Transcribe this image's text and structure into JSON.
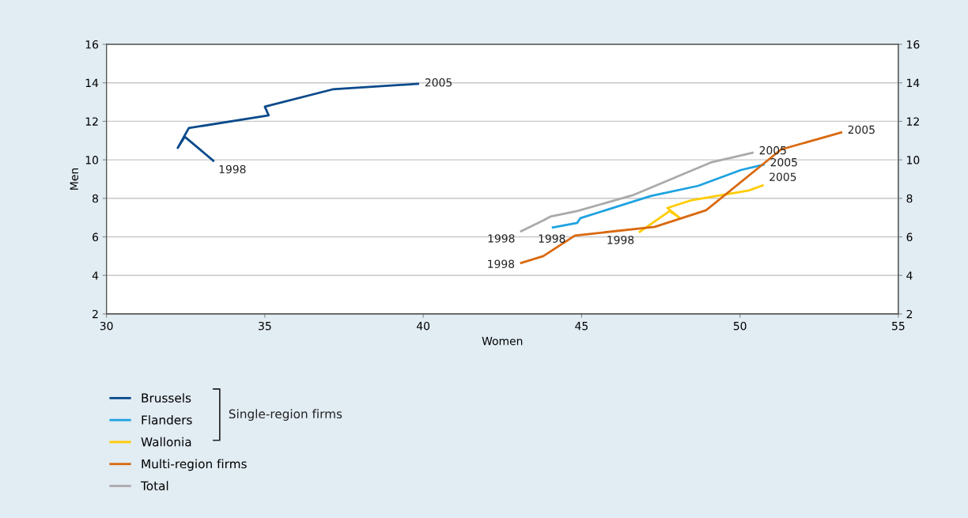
{
  "chart_data": {
    "type": "line",
    "xlabel": "Women",
    "ylabel": "Men",
    "xlim": [
      30,
      55
    ],
    "xticks": [
      30,
      35,
      40,
      45,
      50,
      55
    ],
    "ylim": [
      2,
      16
    ],
    "yticks": [
      2,
      4,
      6,
      8,
      10,
      12,
      14,
      16
    ],
    "y2lim": [
      2,
      16
    ],
    "y2ticks": [
      2,
      4,
      6,
      8,
      10,
      12,
      14,
      16
    ],
    "grid": "y",
    "legend": "bottom left",
    "marker": "none",
    "line_style": "solid",
    "series": [
      {
        "name": "Brussels",
        "color": "#0b4a8b",
        "x": [
          33.4,
          32.47,
          32.25,
          32.6,
          35.12,
          35.0,
          37.14,
          39.87
        ],
        "values": [
          9.92,
          11.2,
          10.62,
          11.65,
          12.31,
          12.76,
          13.66,
          13.95
        ]
      },
      {
        "name": "Flanders",
        "color": "#1ea2e0",
        "x": [
          44.06,
          44.86,
          44.96,
          47.18,
          48.68,
          50.03,
          50.78
        ],
        "values": [
          6.48,
          6.72,
          6.97,
          8.12,
          8.65,
          9.47,
          9.76
        ]
      },
      {
        "name": "Wallonia",
        "color": "#ffcc00",
        "x": [
          46.81,
          47.78,
          48.11,
          47.71,
          48.48,
          50.28,
          50.75
        ],
        "values": [
          6.23,
          7.34,
          6.97,
          7.5,
          7.91,
          8.41,
          8.69
        ]
      },
      {
        "name": "Multi-region firms",
        "color": "#d9690f",
        "x": [
          43.06,
          43.79,
          44.79,
          47.31,
          48.93,
          51.3,
          53.23
        ],
        "values": [
          4.63,
          5.0,
          6.07,
          6.52,
          7.38,
          10.54,
          11.44
        ]
      },
      {
        "name": "Total",
        "color": "#aaaaaa",
        "x": [
          43.06,
          43.79,
          44.01,
          44.86,
          46.61,
          49.11,
          50.43
        ],
        "values": [
          6.27,
          6.85,
          7.05,
          7.34,
          8.16,
          9.88,
          10.38
        ]
      }
    ],
    "annotations": [
      {
        "text": "1998",
        "x": 33.4,
        "y": 9.92
      },
      {
        "text": "2005",
        "x": 39.87,
        "y": 13.95
      },
      {
        "text": "1998",
        "x": 43.06,
        "y": 6.27
      },
      {
        "text": "2005",
        "x": 50.43,
        "y": 10.38
      },
      {
        "text": "1998",
        "x": 44.06,
        "y": 6.48
      },
      {
        "text": "2005",
        "x": 50.78,
        "y": 9.76
      },
      {
        "text": "1998",
        "x": 46.81,
        "y": 6.23
      },
      {
        "text": "2005",
        "x": 50.75,
        "y": 8.69
      },
      {
        "text": "1998",
        "x": 43.06,
        "y": 4.63
      },
      {
        "text": "2005",
        "x": 53.23,
        "y": 11.44
      },
      "Single-region firms"
    ]
  }
}
